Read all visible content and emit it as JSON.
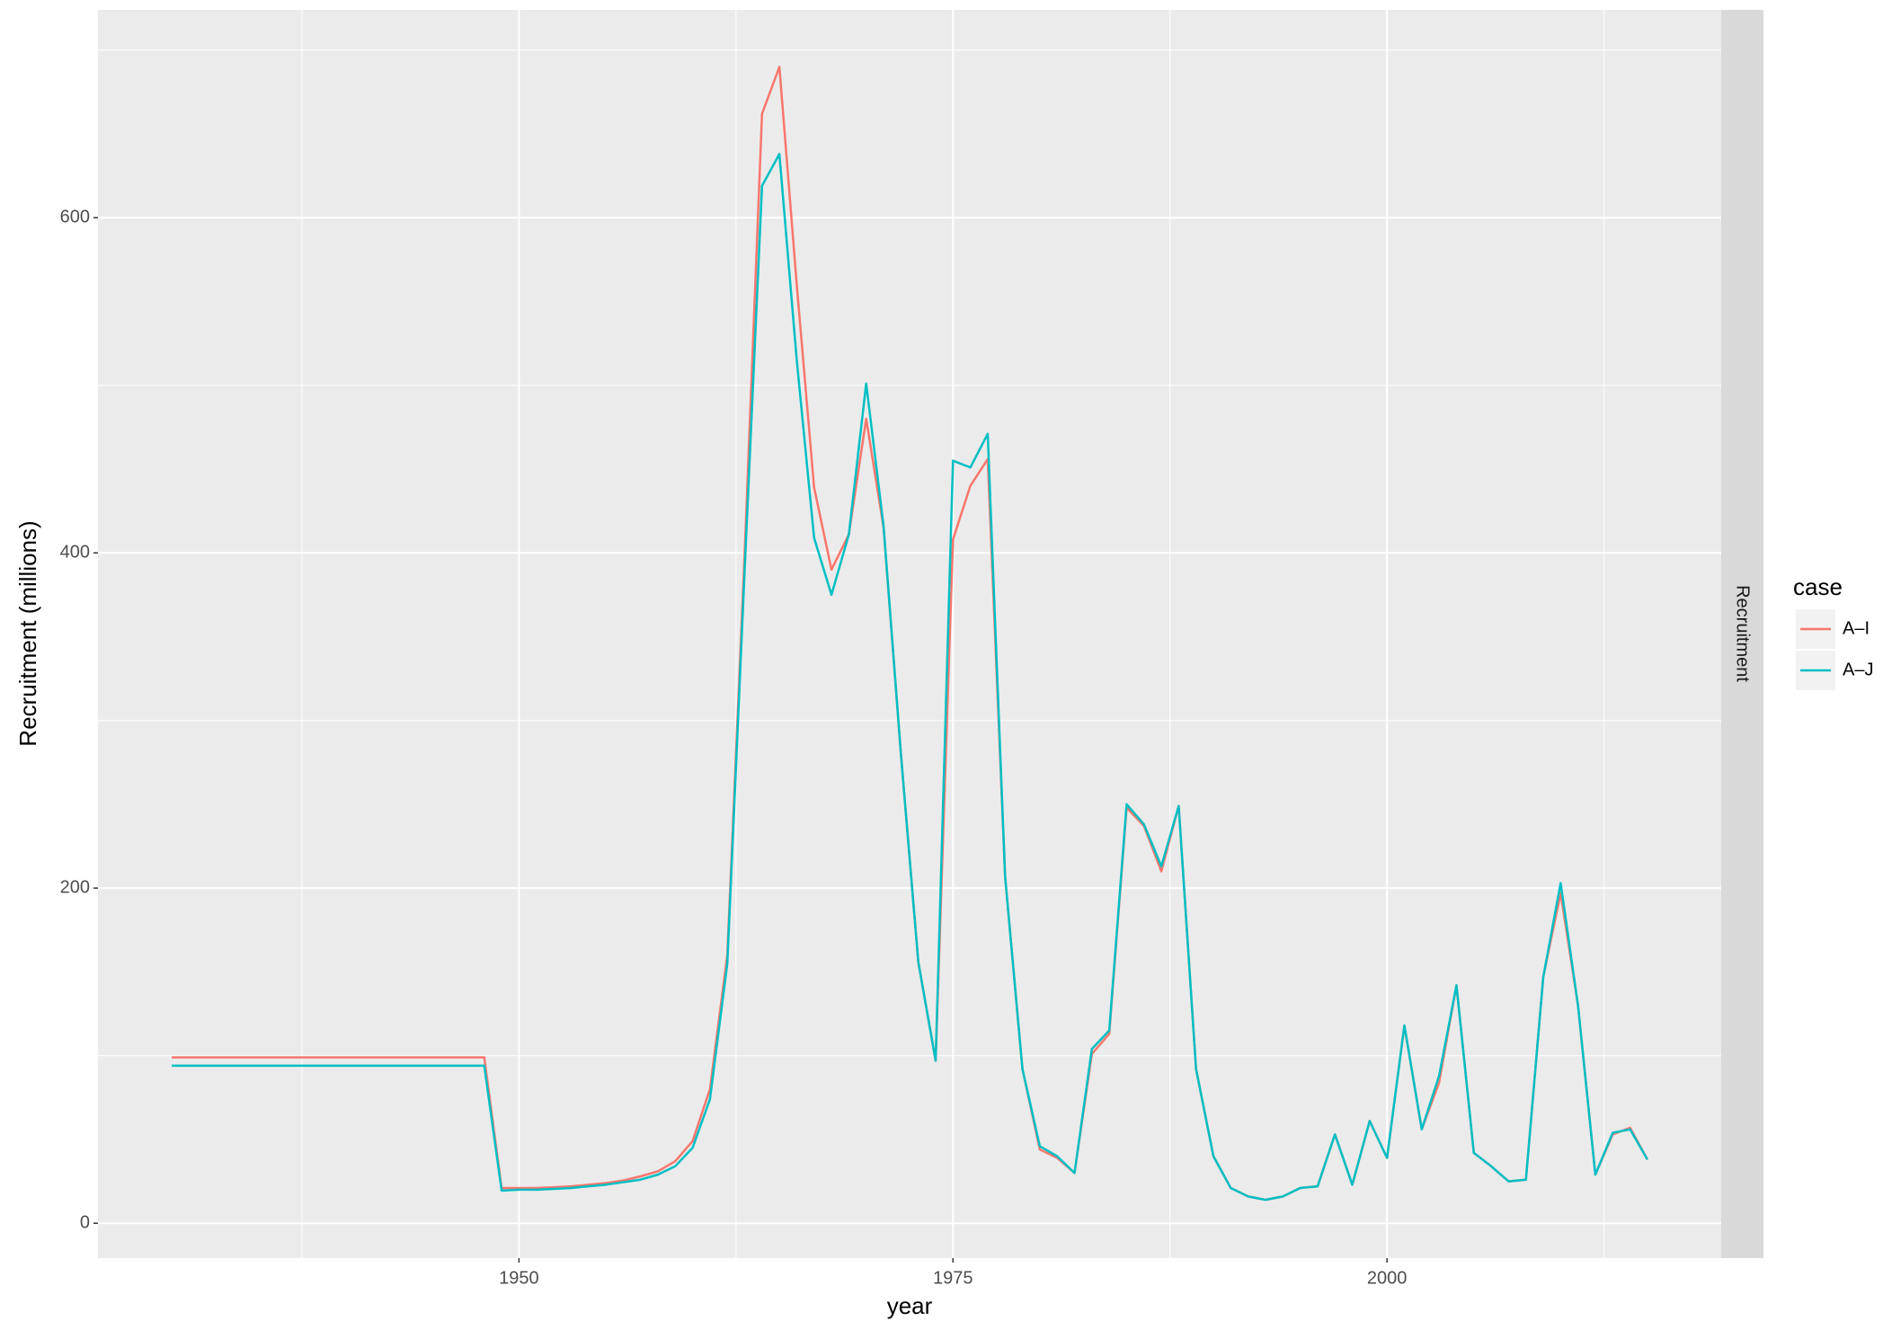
{
  "chart_data": {
    "type": "line",
    "xlabel": "year",
    "ylabel": "Recruitment (millions)",
    "facet_label": "Recruitment",
    "legend_title": "case",
    "x": [
      1930,
      1931,
      1932,
      1933,
      1934,
      1935,
      1936,
      1937,
      1938,
      1939,
      1940,
      1941,
      1942,
      1943,
      1944,
      1945,
      1946,
      1947,
      1948,
      1949,
      1950,
      1951,
      1952,
      1953,
      1954,
      1955,
      1956,
      1957,
      1958,
      1959,
      1960,
      1961,
      1962,
      1963,
      1964,
      1965,
      1966,
      1967,
      1968,
      1969,
      1970,
      1971,
      1972,
      1973,
      1974,
      1975,
      1976,
      1977,
      1978,
      1979,
      1980,
      1981,
      1982,
      1983,
      1984,
      1985,
      1986,
      1987,
      1988,
      1989,
      1990,
      1991,
      1992,
      1993,
      1994,
      1995,
      1996,
      1997,
      1998,
      1999,
      2000,
      2001,
      2002,
      2003,
      2004,
      2005,
      2006,
      2007,
      2008,
      2009,
      2010,
      2011,
      2012,
      2013,
      2014,
      2015
    ],
    "series": [
      {
        "name": "A–I",
        "color": "#F8766D",
        "values": [
          99,
          99,
          99,
          99,
          99,
          99,
          99,
          99,
          99,
          99,
          99,
          99,
          99,
          99,
          99,
          99,
          99,
          99,
          99,
          21,
          21,
          21,
          21.5,
          22,
          23,
          24,
          25.5,
          28,
          31,
          37,
          49,
          80,
          160,
          400,
          662,
          690,
          560,
          439,
          390,
          411,
          480,
          415,
          280,
          156,
          97,
          408,
          440,
          456,
          207,
          92,
          44,
          39,
          30,
          101,
          113,
          248,
          237,
          210,
          249,
          92,
          40,
          21,
          16,
          14,
          16,
          21,
          22,
          53,
          23,
          61,
          39,
          118,
          56,
          84,
          142,
          42,
          34,
          25,
          26,
          147,
          197,
          130,
          29,
          53,
          57,
          38
        ]
      },
      {
        "name": "A–J",
        "color": "#00BFC4",
        "values": [
          94,
          94,
          94,
          94,
          94,
          94,
          94,
          94,
          94,
          94,
          94,
          94,
          94,
          94,
          94,
          94,
          94,
          94,
          94,
          19.5,
          20,
          20,
          20.5,
          21,
          22,
          23,
          24.5,
          26,
          29,
          34,
          45,
          74,
          155,
          390,
          619,
          638,
          515,
          409,
          375,
          411,
          501,
          416,
          280,
          156,
          97,
          455,
          451,
          471,
          207,
          92,
          46,
          40,
          30,
          104,
          115,
          250,
          238,
          213,
          249,
          92,
          40,
          21,
          16,
          14,
          16,
          21,
          22,
          53,
          23,
          61,
          39,
          118,
          56,
          88,
          142,
          42,
          34,
          25,
          26,
          147,
          203,
          130,
          29,
          54,
          56,
          38
        ]
      }
    ],
    "xlim": [
      1925.75,
      2019.25
    ],
    "xticks": [
      1950,
      1975,
      2000
    ],
    "x_minor_grid": [
      1937.5,
      1962.5,
      1987.5,
      2012.5
    ],
    "ylim": [
      -20.8,
      724
    ],
    "yticks": [
      0,
      200,
      400,
      600
    ],
    "y_minor_grid": [
      100,
      300,
      500,
      700
    ],
    "grid": true
  }
}
